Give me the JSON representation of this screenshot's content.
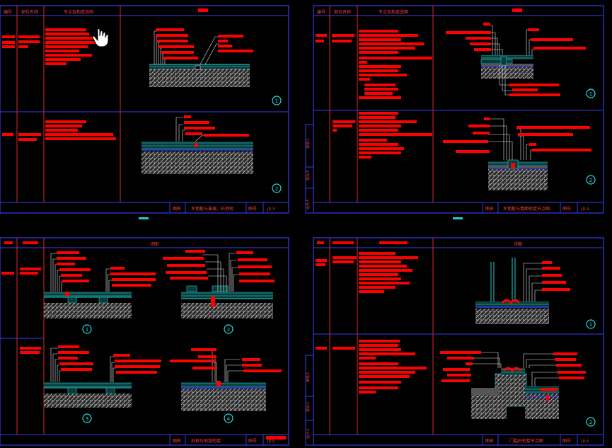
{
  "colors": {
    "background": "#000000",
    "frame": "#3a3ae8",
    "divider": "#e0232b",
    "label_fill": "#ff0000",
    "leader": "#e8e8e8",
    "concrete": "#d8d8d8",
    "cyan": "#22d0d0",
    "circle": "#22e0e0"
  },
  "sheets": [
    {
      "id": "sheet-1",
      "header": [
        "编号",
        "部位名称",
        "节点及构造说明",
        ""
      ],
      "title_block": {
        "label": "图名",
        "name": "木地板与玻璃、石材衔",
        "code_label": "图号",
        "code": "JD-3"
      },
      "detail_numbers": [
        "1",
        "2"
      ]
    },
    {
      "id": "sheet-2",
      "header": [
        "编号",
        "部位名称",
        "节点及构造说明",
        ""
      ],
      "title_block": {
        "label": "图名",
        "name": "木地板与墙面衔接节点图",
        "code_label": "图号",
        "code": "JD-4"
      },
      "detail_numbers": [
        "1",
        "2"
      ]
    },
    {
      "id": "sheet-3",
      "header": [
        "",
        "",
        "",
        "详图"
      ],
      "title_block": {
        "label": "图名",
        "name": "石材与地毯衔接",
        "code_label": "图号",
        "code": "JD-5"
      },
      "detail_numbers": [
        "1",
        "2",
        "3",
        "4"
      ]
    },
    {
      "id": "sheet-4",
      "header": [
        "",
        "",
        "",
        "详图"
      ],
      "title_block": {
        "label": "图名",
        "name": "门槛石衔接节点图",
        "code_label": "图号",
        "code": "JD-6"
      },
      "detail_numbers": [
        "1",
        "2"
      ]
    }
  ],
  "cursor": {
    "icon": "hand-cursor-icon"
  }
}
